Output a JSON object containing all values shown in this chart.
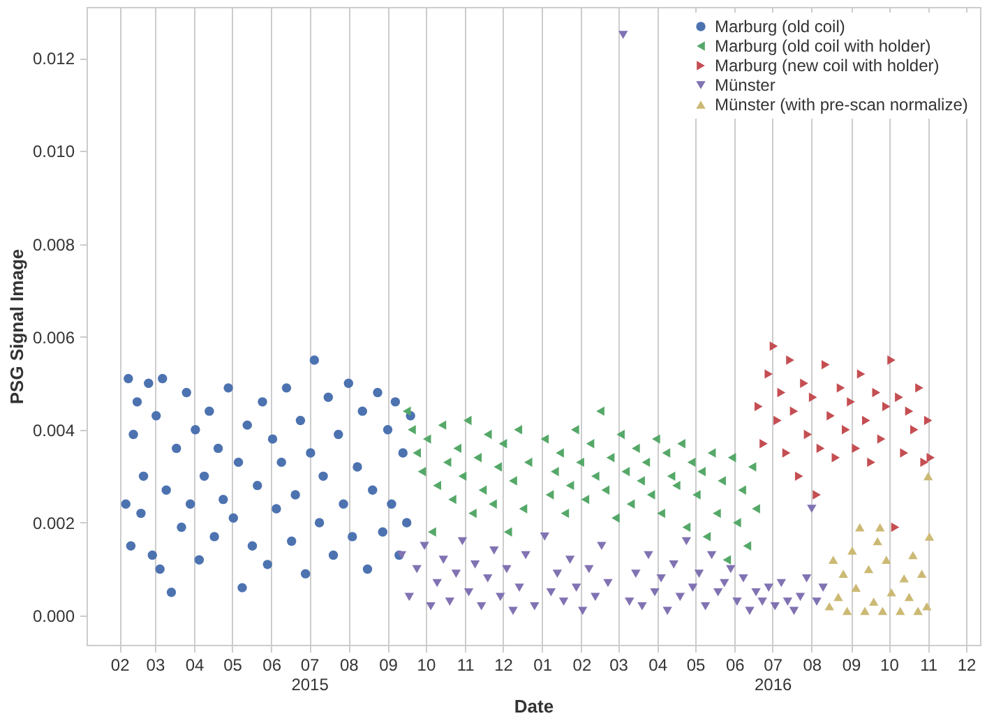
{
  "chart_data": {
    "type": "scatter",
    "xlabel": "Date",
    "ylabel": "PSG Signal Image",
    "legend": "top right",
    "grid": "x",
    "xlim": [
      "2015-01-06",
      "2016-12-12"
    ],
    "ylim": [
      -0.00063,
      0.0131
    ],
    "xticks": [
      {
        "value": "2015-02-01",
        "label": "02"
      },
      {
        "value": "2015-03-01",
        "label": "03"
      },
      {
        "value": "2015-04-01",
        "label": "04"
      },
      {
        "value": "2015-05-01",
        "label": "05"
      },
      {
        "value": "2015-06-01",
        "label": "06"
      },
      {
        "value": "2015-07-01",
        "label": "07\n2015"
      },
      {
        "value": "2015-08-01",
        "label": "08"
      },
      {
        "value": "2015-09-01",
        "label": "09"
      },
      {
        "value": "2015-10-01",
        "label": "10"
      },
      {
        "value": "2015-11-01",
        "label": "11"
      },
      {
        "value": "2015-12-01",
        "label": "12"
      },
      {
        "value": "2016-01-01",
        "label": "01"
      },
      {
        "value": "2016-02-01",
        "label": "02"
      },
      {
        "value": "2016-03-01",
        "label": "03"
      },
      {
        "value": "2016-04-01",
        "label": "04"
      },
      {
        "value": "2016-05-01",
        "label": "05"
      },
      {
        "value": "2016-06-01",
        "label": "06"
      },
      {
        "value": "2016-07-01",
        "label": "07\n2016"
      },
      {
        "value": "2016-08-01",
        "label": "08"
      },
      {
        "value": "2016-09-01",
        "label": "09"
      },
      {
        "value": "2016-10-01",
        "label": "10"
      },
      {
        "value": "2016-11-01",
        "label": "11"
      },
      {
        "value": "2016-12-01",
        "label": "12"
      }
    ],
    "yticks": [
      {
        "value": 0,
        "label": "0.000"
      },
      {
        "value": 0.002,
        "label": "0.002"
      },
      {
        "value": 0.004,
        "label": "0.004"
      },
      {
        "value": 0.006,
        "label": "0.006"
      },
      {
        "value": 0.008,
        "label": "0.008"
      },
      {
        "value": 0.01,
        "label": "0.010"
      },
      {
        "value": 0.012,
        "label": "0.012"
      }
    ],
    "series": [
      {
        "name": "Marburg (old coil)",
        "color": "#4c72b0",
        "marker": "circle",
        "x": [
          "2015-02-06",
          "2015-02-08",
          "2015-02-10",
          "2015-02-12",
          "2015-02-15",
          "2015-02-18",
          "2015-02-20",
          "2015-02-24",
          "2015-02-27",
          "2015-03-02",
          "2015-03-05",
          "2015-03-07",
          "2015-03-10",
          "2015-03-14",
          "2015-03-18",
          "2015-03-22",
          "2015-03-26",
          "2015-03-29",
          "2015-04-02",
          "2015-04-05",
          "2015-04-09",
          "2015-04-13",
          "2015-04-17",
          "2015-04-20",
          "2015-04-24",
          "2015-04-28",
          "2015-05-02",
          "2015-05-06",
          "2015-05-09",
          "2015-05-13",
          "2015-05-17",
          "2015-05-21",
          "2015-05-25",
          "2015-05-29",
          "2015-06-02",
          "2015-06-05",
          "2015-06-09",
          "2015-06-13",
          "2015-06-17",
          "2015-06-20",
          "2015-06-24",
          "2015-06-28",
          "2015-07-02",
          "2015-07-05",
          "2015-07-09",
          "2015-07-12",
          "2015-07-16",
          "2015-07-20",
          "2015-07-24",
          "2015-07-28",
          "2015-08-01",
          "2015-08-04",
          "2015-08-08",
          "2015-08-12",
          "2015-08-16",
          "2015-08-20",
          "2015-08-24",
          "2015-08-28",
          "2015-09-01",
          "2015-09-04",
          "2015-09-07",
          "2015-09-10",
          "2015-09-13",
          "2015-09-16",
          "2015-09-19"
        ],
        "values": [
          0.0024,
          0.0051,
          0.0015,
          0.0039,
          0.0046,
          0.0022,
          0.003,
          0.005,
          0.0013,
          0.0043,
          0.001,
          0.0051,
          0.0027,
          0.0005,
          0.0036,
          0.0019,
          0.0048,
          0.0024,
          0.004,
          0.0012,
          0.003,
          0.0044,
          0.0017,
          0.0036,
          0.0025,
          0.0049,
          0.0021,
          0.0033,
          0.0006,
          0.0041,
          0.0015,
          0.0028,
          0.0046,
          0.0011,
          0.0038,
          0.0023,
          0.0033,
          0.0049,
          0.0016,
          0.0026,
          0.0042,
          0.0009,
          0.0035,
          0.0055,
          0.002,
          0.003,
          0.0047,
          0.0013,
          0.0039,
          0.0024,
          0.005,
          0.0017,
          0.0032,
          0.0044,
          0.001,
          0.0027,
          0.0048,
          0.0018,
          0.004,
          0.0024,
          0.0046,
          0.0013,
          0.0035,
          0.002,
          0.0043
        ]
      },
      {
        "name": "Marburg (old coil with holder)",
        "color": "#55a868",
        "marker": "triangle-left",
        "x": [
          "2015-09-16",
          "2015-09-20",
          "2015-09-24",
          "2015-09-28",
          "2015-10-02",
          "2015-10-06",
          "2015-10-10",
          "2015-10-14",
          "2015-10-18",
          "2015-10-22",
          "2015-10-26",
          "2015-10-30",
          "2015-11-03",
          "2015-11-07",
          "2015-11-11",
          "2015-11-15",
          "2015-11-19",
          "2015-11-23",
          "2015-11-27",
          "2015-12-01",
          "2015-12-05",
          "2015-12-09",
          "2015-12-13",
          "2015-12-17",
          "2015-12-21",
          "2016-01-03",
          "2016-01-07",
          "2016-01-11",
          "2016-01-15",
          "2016-01-19",
          "2016-01-23",
          "2016-01-27",
          "2016-01-31",
          "2016-02-04",
          "2016-02-08",
          "2016-02-12",
          "2016-02-16",
          "2016-02-20",
          "2016-02-24",
          "2016-02-28",
          "2016-03-03",
          "2016-03-07",
          "2016-03-11",
          "2016-03-15",
          "2016-03-19",
          "2016-03-23",
          "2016-03-27",
          "2016-03-31",
          "2016-04-04",
          "2016-04-08",
          "2016-04-12",
          "2016-04-16",
          "2016-04-20",
          "2016-04-24",
          "2016-04-28",
          "2016-05-02",
          "2016-05-06",
          "2016-05-10",
          "2016-05-14",
          "2016-05-18",
          "2016-05-22",
          "2016-05-26",
          "2016-05-30",
          "2016-06-03",
          "2016-06-07",
          "2016-06-11",
          "2016-06-15",
          "2016-06-18"
        ],
        "values": [
          0.0044,
          0.004,
          0.0035,
          0.0031,
          0.0038,
          0.0018,
          0.0028,
          0.0041,
          0.0033,
          0.0025,
          0.0036,
          0.003,
          0.0042,
          0.0022,
          0.0034,
          0.0027,
          0.0039,
          0.0024,
          0.0032,
          0.0037,
          0.0018,
          0.0029,
          0.004,
          0.0023,
          0.0033,
          0.0038,
          0.0026,
          0.0031,
          0.0035,
          0.0022,
          0.0028,
          0.004,
          0.0033,
          0.0025,
          0.0037,
          0.003,
          0.0044,
          0.0027,
          0.0034,
          0.0021,
          0.0039,
          0.0031,
          0.0024,
          0.0036,
          0.0029,
          0.0033,
          0.0026,
          0.0038,
          0.0022,
          0.0035,
          0.003,
          0.0028,
          0.0037,
          0.0019,
          0.0033,
          0.0026,
          0.0031,
          0.0017,
          0.0035,
          0.0022,
          0.0029,
          0.0012,
          0.0034,
          0.002,
          0.0027,
          0.0015,
          0.0032,
          0.0023
        ]
      },
      {
        "name": "Marburg (new coil with holder)",
        "color": "#c44e52",
        "marker": "triangle-right",
        "x": [
          "2016-06-20",
          "2016-06-24",
          "2016-06-28",
          "2016-07-02",
          "2016-07-05",
          "2016-07-08",
          "2016-07-12",
          "2016-07-15",
          "2016-07-18",
          "2016-07-22",
          "2016-07-26",
          "2016-07-29",
          "2016-08-02",
          "2016-08-05",
          "2016-08-08",
          "2016-08-12",
          "2016-08-16",
          "2016-08-20",
          "2016-08-24",
          "2016-08-28",
          "2016-09-01",
          "2016-09-05",
          "2016-09-09",
          "2016-09-13",
          "2016-09-17",
          "2016-09-21",
          "2016-09-25",
          "2016-09-29",
          "2016-10-03",
          "2016-10-06",
          "2016-10-09",
          "2016-10-13",
          "2016-10-17",
          "2016-10-21",
          "2016-10-25",
          "2016-10-29",
          "2016-11-01",
          "2016-11-03"
        ],
        "values": [
          0.0045,
          0.0037,
          0.0052,
          0.0058,
          0.0042,
          0.0048,
          0.0035,
          0.0055,
          0.0044,
          0.003,
          0.005,
          0.0039,
          0.0047,
          0.0026,
          0.0036,
          0.0054,
          0.0043,
          0.0034,
          0.0049,
          0.004,
          0.0046,
          0.0036,
          0.0052,
          0.0042,
          0.0033,
          0.0048,
          0.0038,
          0.0045,
          0.0055,
          0.0019,
          0.0047,
          0.0035,
          0.0044,
          0.004,
          0.0049,
          0.0033,
          0.0042,
          0.0034
        ]
      },
      {
        "name": "Münster",
        "color": "#8172b2",
        "marker": "triangle-down",
        "x": [
          "2015-09-12",
          "2015-09-18",
          "2015-09-24",
          "2015-09-30",
          "2015-10-05",
          "2015-10-10",
          "2015-10-15",
          "2015-10-20",
          "2015-10-25",
          "2015-10-30",
          "2015-11-04",
          "2015-11-09",
          "2015-11-14",
          "2015-11-19",
          "2015-11-24",
          "2015-11-29",
          "2015-12-04",
          "2015-12-09",
          "2015-12-14",
          "2015-12-19",
          "2015-12-26",
          "2016-01-03",
          "2016-01-08",
          "2016-01-13",
          "2016-01-18",
          "2016-01-23",
          "2016-01-28",
          "2016-02-02",
          "2016-02-07",
          "2016-02-12",
          "2016-02-17",
          "2016-02-22",
          "2016-03-05",
          "2016-03-10",
          "2016-03-15",
          "2016-03-20",
          "2016-03-25",
          "2016-03-30",
          "2016-04-04",
          "2016-04-09",
          "2016-04-14",
          "2016-04-19",
          "2016-04-24",
          "2016-04-29",
          "2016-05-04",
          "2016-05-09",
          "2016-05-14",
          "2016-05-19",
          "2016-05-24",
          "2016-05-29",
          "2016-06-03",
          "2016-06-08",
          "2016-06-13",
          "2016-06-18",
          "2016-06-23",
          "2016-06-28",
          "2016-07-03",
          "2016-07-08",
          "2016-07-13",
          "2016-07-18",
          "2016-07-23",
          "2016-07-28",
          "2016-08-01",
          "2016-08-05",
          "2016-08-10"
        ],
        "values": [
          0.0013,
          0.0004,
          0.001,
          0.0015,
          0.0002,
          0.0007,
          0.0012,
          0.0003,
          0.0009,
          0.0016,
          0.0005,
          0.0011,
          0.0002,
          0.0008,
          0.0014,
          0.0004,
          0.001,
          0.0001,
          0.0006,
          0.0013,
          0.0002,
          0.0017,
          0.0005,
          0.0009,
          0.0003,
          0.0012,
          0.0006,
          0.0001,
          0.001,
          0.0004,
          0.0015,
          0.0007,
          0.0125,
          0.0003,
          0.0009,
          0.0002,
          0.0013,
          0.0005,
          0.0008,
          0.0001,
          0.0011,
          0.0004,
          0.0016,
          0.0006,
          0.0009,
          0.0002,
          0.0013,
          0.0005,
          0.0007,
          0.001,
          0.0003,
          0.0008,
          0.0001,
          0.0005,
          0.0003,
          0.0006,
          0.0002,
          0.0007,
          0.0003,
          0.0001,
          0.0004,
          0.0008,
          0.0023,
          0.0003,
          0.0006
        ]
      },
      {
        "name": "Münster (with pre-scan normalize)",
        "color": "#ccb974",
        "marker": "triangle-up",
        "x": [
          "2016-08-15",
          "2016-08-18",
          "2016-08-22",
          "2016-08-26",
          "2016-08-29",
          "2016-09-02",
          "2016-09-05",
          "2016-09-08",
          "2016-09-12",
          "2016-09-15",
          "2016-09-19",
          "2016-09-22",
          "2016-09-26",
          "2016-09-29",
          "2016-10-03",
          "2016-09-24",
          "2016-10-10",
          "2016-10-13",
          "2016-10-17",
          "2016-10-20",
          "2016-10-24",
          "2016-10-27",
          "2016-10-31",
          "2016-11-01",
          "2016-11-02"
        ],
        "values": [
          0.0002,
          0.0012,
          0.0004,
          0.0009,
          0.0001,
          0.0014,
          0.0006,
          0.0019,
          0.0001,
          0.001,
          0.0003,
          0.0016,
          0.0001,
          0.0012,
          0.0005,
          0.0019,
          0.0001,
          0.0008,
          0.0004,
          0.0013,
          0.0001,
          0.0009,
          0.0002,
          0.003,
          0.0017
        ]
      }
    ]
  }
}
